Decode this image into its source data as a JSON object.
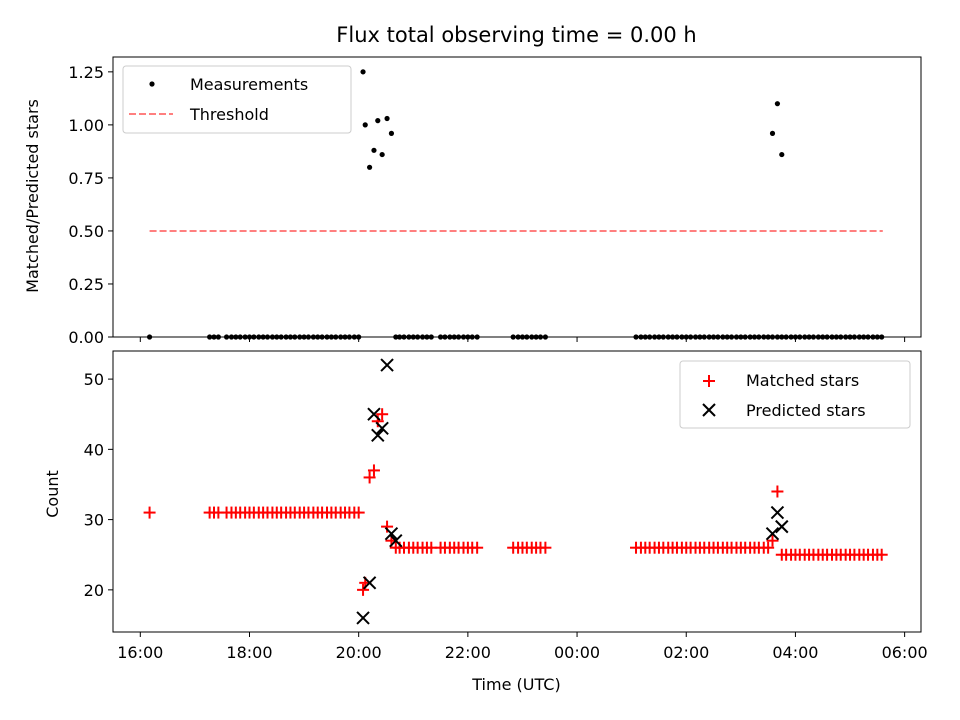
{
  "chart_data": [
    {
      "type": "scatter",
      "title": "Flux total observing time = 0.00 h",
      "xlabel": "",
      "ylabel": "Matched/Predicted stars",
      "xlim": [
        -4.3,
        22.3
      ],
      "ylim": [
        0.0,
        1.32
      ],
      "yticks": [
        0.0,
        0.25,
        0.5,
        0.75,
        1.0,
        1.25
      ],
      "ytick_labels": [
        "0.00",
        "0.25",
        "0.50",
        "0.75",
        "1.00",
        "1.25"
      ],
      "xticks": [
        0,
        2,
        4,
        6,
        8,
        10,
        12,
        14
      ],
      "legend_position": "top-left",
      "series": [
        {
          "name": "Measurements",
          "kind": "points",
          "color": "#000000",
          "x": [
            0.17,
            1.27,
            1.35,
            1.43,
            1.58,
            1.67,
            1.75,
            1.83,
            1.92,
            2.0,
            2.08,
            2.17,
            2.25,
            2.33,
            2.42,
            2.5,
            2.58,
            2.67,
            2.75,
            2.83,
            2.92,
            3.0,
            3.08,
            3.17,
            3.25,
            3.33,
            3.42,
            3.5,
            3.58,
            3.67,
            3.75,
            3.83,
            3.92,
            4.0,
            4.08,
            4.12,
            4.2,
            4.28,
            4.35,
            4.43,
            4.52,
            4.6,
            4.68,
            4.75,
            4.83,
            4.92,
            5.0,
            5.08,
            5.17,
            5.25,
            5.33,
            5.5,
            5.58,
            5.67,
            5.75,
            5.83,
            5.92,
            6.0,
            6.08,
            6.17,
            6.83,
            6.92,
            7.0,
            7.08,
            7.17,
            7.25,
            7.33,
            7.42,
            9.08,
            9.17,
            9.25,
            9.33,
            9.42,
            9.5,
            9.58,
            9.67,
            9.75,
            9.83,
            9.92,
            10.0,
            10.08,
            10.17,
            10.25,
            10.33,
            10.42,
            10.5,
            10.58,
            10.67,
            10.75,
            10.83,
            10.92,
            11.0,
            11.08,
            11.17,
            11.25,
            11.33,
            11.42,
            11.5,
            11.58,
            11.67,
            11.75,
            11.83,
            11.92,
            12.0,
            12.08,
            12.17,
            12.25,
            12.33,
            12.42,
            12.5,
            12.58,
            12.67,
            12.75,
            12.83,
            12.92,
            13.0,
            13.08,
            13.17,
            13.25,
            13.33,
            13.42,
            13.5,
            13.58
          ],
          "y": [
            0,
            0,
            0,
            0,
            0,
            0,
            0,
            0,
            0,
            0,
            0,
            0,
            0,
            0,
            0,
            0,
            0,
            0,
            0,
            0,
            0,
            0,
            0,
            0,
            0,
            0,
            0,
            0,
            0,
            0,
            0,
            0,
            0,
            0,
            1.25,
            1.0,
            0.8,
            0.88,
            1.02,
            0.86,
            1.03,
            0.96,
            0,
            0,
            0,
            0,
            0,
            0,
            0,
            0,
            0,
            0,
            0,
            0,
            0,
            0,
            0,
            0,
            0,
            0,
            0,
            0,
            0,
            0,
            0,
            0,
            0,
            0,
            0,
            0,
            0,
            0,
            0,
            0,
            0,
            0,
            0,
            0,
            0,
            0,
            0,
            0,
            0,
            0,
            0,
            0,
            0,
            0,
            0,
            0,
            0,
            0,
            0,
            0,
            0,
            0,
            0,
            0,
            0,
            0,
            0,
            0,
            0,
            0,
            0,
            0,
            0,
            0,
            0,
            0,
            0,
            0,
            0,
            0,
            0,
            0,
            0,
            0,
            0,
            0,
            0,
            0,
            0
          ]
        },
        {
          "name": "Threshold",
          "kind": "dashed-line",
          "color": "#ff7f7f",
          "x": [
            0.17,
            13.6
          ],
          "y": [
            0.5,
            0.5
          ]
        }
      ],
      "extra_points": {
        "x": [
          11.58,
          11.67,
          11.75
        ],
        "y": [
          0.96,
          1.1,
          0.86
        ]
      }
    },
    {
      "type": "scatter",
      "title": "",
      "xlabel": "Time (UTC)",
      "ylabel": "Count",
      "xlim": [
        -0.5,
        14.3
      ],
      "ylim": [
        14.0,
        54.0
      ],
      "yticks": [
        20,
        30,
        40,
        50
      ],
      "ytick_labels": [
        "20",
        "30",
        "40",
        "50"
      ],
      "xticks": [
        0,
        2,
        4,
        6,
        8,
        10,
        12,
        14
      ],
      "xtick_labels": [
        "16:00",
        "18:00",
        "20:00",
        "22:00",
        "00:00",
        "02:00",
        "04:00",
        "06:00"
      ],
      "legend_position": "top-right",
      "series": [
        {
          "name": "Matched stars",
          "marker": "plus",
          "color": "#ff0000",
          "x": [
            0.17,
            1.27,
            1.35,
            1.43,
            1.58,
            1.67,
            1.75,
            1.83,
            1.92,
            2.0,
            2.08,
            2.17,
            2.25,
            2.33,
            2.42,
            2.5,
            2.58,
            2.67,
            2.75,
            2.83,
            2.92,
            3.0,
            3.08,
            3.17,
            3.25,
            3.33,
            3.42,
            3.5,
            3.58,
            3.67,
            3.75,
            3.83,
            3.92,
            4.0,
            4.08,
            4.12,
            4.2,
            4.28,
            4.35,
            4.43,
            4.52,
            4.6,
            4.68,
            4.75,
            4.83,
            4.92,
            5.0,
            5.08,
            5.17,
            5.25,
            5.33,
            5.5,
            5.58,
            5.67,
            5.75,
            5.83,
            5.92,
            6.0,
            6.08,
            6.17,
            6.83,
            6.92,
            7.0,
            7.08,
            7.17,
            7.25,
            7.33,
            7.42,
            9.08,
            9.17,
            9.25,
            9.33,
            9.42,
            9.5,
            9.58,
            9.67,
            9.75,
            9.83,
            9.92,
            10.0,
            10.08,
            10.17,
            10.25,
            10.33,
            10.42,
            10.5,
            10.58,
            10.67,
            10.75,
            10.83,
            10.92,
            11.0,
            11.08,
            11.17,
            11.25,
            11.33,
            11.42,
            11.5,
            11.58,
            11.67,
            11.75,
            11.83,
            11.92,
            12.0,
            12.08,
            12.17,
            12.25,
            12.33,
            12.42,
            12.5,
            12.58,
            12.67,
            12.75,
            12.83,
            12.92,
            13.0,
            13.08,
            13.17,
            13.25,
            13.33,
            13.42,
            13.5,
            13.58
          ],
          "y": [
            31,
            31,
            31,
            31,
            31,
            31,
            31,
            31,
            31,
            31,
            31,
            31,
            31,
            31,
            31,
            31,
            31,
            31,
            31,
            31,
            31,
            31,
            31,
            31,
            31,
            31,
            31,
            31,
            31,
            31,
            31,
            31,
            31,
            31,
            20,
            21,
            36,
            37,
            44,
            45,
            29,
            27,
            26,
            26,
            26,
            26,
            26,
            26,
            26,
            26,
            26,
            26,
            26,
            26,
            26,
            26,
            26,
            26,
            26,
            26,
            26,
            26,
            26,
            26,
            26,
            26,
            26,
            26,
            26,
            26,
            26,
            26,
            26,
            26,
            26,
            26,
            26,
            26,
            26,
            26,
            26,
            26,
            26,
            26,
            26,
            26,
            26,
            26,
            26,
            26,
            26,
            26,
            26,
            26,
            26,
            26,
            26,
            26,
            27,
            34,
            25,
            25,
            25,
            25,
            25,
            25,
            25,
            25,
            25,
            25,
            25,
            25,
            25,
            25,
            25,
            25,
            25,
            25,
            25,
            25,
            25,
            25,
            25
          ]
        },
        {
          "name": "Predicted stars",
          "marker": "x",
          "color": "#000000",
          "x": [
            4.08,
            4.2,
            4.28,
            4.35,
            4.43,
            4.52,
            4.6,
            4.68,
            11.58,
            11.67,
            11.75
          ],
          "y": [
            16,
            21,
            45,
            42,
            43,
            52,
            28,
            27,
            28,
            31,
            29
          ]
        }
      ]
    }
  ]
}
